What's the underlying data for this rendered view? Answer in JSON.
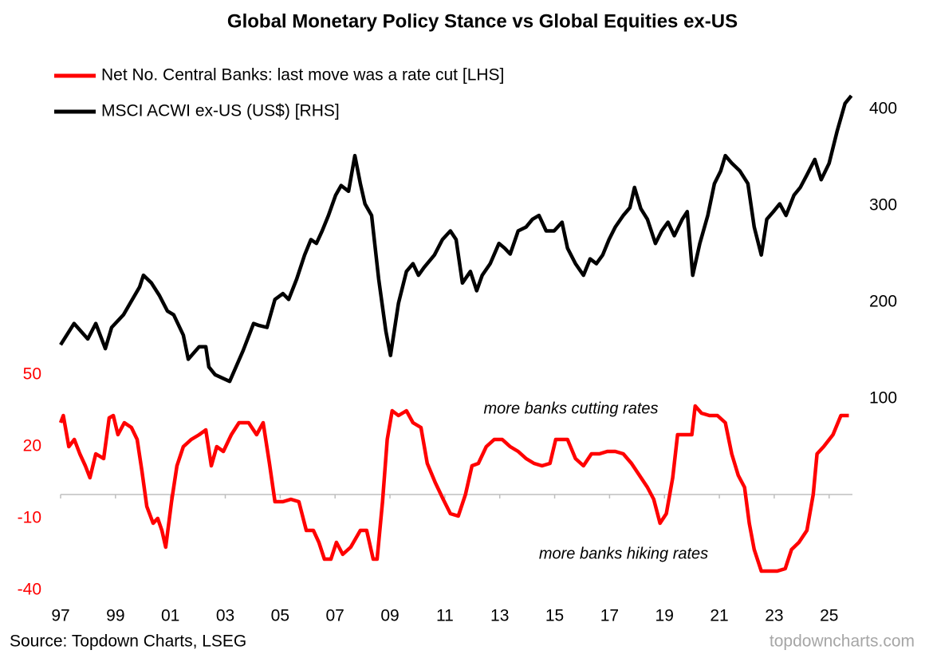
{
  "chart_data": {
    "type": "line",
    "title": "Global Monetary Policy Stance vs Global Equities ex-US",
    "source": "Source: Topdown Charts, LSEG",
    "watermark": "topdowncharts.com",
    "annotations": [
      "more banks cutting rates",
      "more banks hiking rates"
    ],
    "xlim": [
      1997,
      2025.85
    ],
    "xticks": [
      {
        "value": 1997,
        "label": "97"
      },
      {
        "value": 1999,
        "label": "99"
      },
      {
        "value": 2001,
        "label": "01"
      },
      {
        "value": 2003,
        "label": "03"
      },
      {
        "value": 2005,
        "label": "05"
      },
      {
        "value": 2007,
        "label": "07"
      },
      {
        "value": 2009,
        "label": "09"
      },
      {
        "value": 2011,
        "label": "11"
      },
      {
        "value": 2013,
        "label": "13"
      },
      {
        "value": 2015,
        "label": "15"
      },
      {
        "value": 2017,
        "label": "17"
      },
      {
        "value": 2019,
        "label": "19"
      },
      {
        "value": 2021,
        "label": "21"
      },
      {
        "value": 2023,
        "label": "23"
      },
      {
        "value": 2025,
        "label": "25"
      }
    ],
    "ylim": [
      -40,
      170
    ],
    "yticks": [
      -40,
      -10,
      20,
      50
    ],
    "y2lim": [
      -98.3,
      422.3
    ],
    "y2ticks": [
      100,
      200,
      300,
      400
    ],
    "series": [
      {
        "name": "Net No. Central Banks: last move was a rate cut [LHS]",
        "color": "#ff0000",
        "axis": "y",
        "x": [
          1997.0,
          1997.1,
          1997.3,
          1997.5,
          1997.7,
          1997.9,
          1998.07,
          1998.28,
          1998.57,
          1998.77,
          1998.92,
          1999.09,
          1999.32,
          1999.58,
          1999.79,
          1999.96,
          2000.14,
          2000.37,
          2000.54,
          2000.69,
          2000.83,
          2001.04,
          2001.24,
          2001.47,
          2001.76,
          2002.05,
          2002.29,
          2002.49,
          2002.69,
          2002.93,
          2003.22,
          2003.5,
          2003.85,
          2004.14,
          2004.38,
          2004.61,
          2004.81,
          2005.1,
          2005.39,
          2005.68,
          2005.95,
          2006.21,
          2006.41,
          2006.61,
          2006.85,
          2007.05,
          2007.28,
          2007.57,
          2007.92,
          2008.15,
          2008.39,
          2008.53,
          2008.73,
          2008.9,
          2009.08,
          2009.31,
          2009.6,
          2009.84,
          2010.13,
          2010.36,
          2010.65,
          2010.94,
          2011.2,
          2011.49,
          2011.75,
          2011.99,
          2012.22,
          2012.51,
          2012.8,
          2013.09,
          2013.38,
          2013.67,
          2013.96,
          2014.25,
          2014.54,
          2014.83,
          2015.04,
          2015.47,
          2015.76,
          2016.05,
          2016.34,
          2016.63,
          2016.92,
          2017.21,
          2017.5,
          2017.8,
          2018.09,
          2018.38,
          2018.61,
          2018.84,
          2019.07,
          2019.3,
          2019.48,
          2019.77,
          2020.0,
          2020.12,
          2020.35,
          2020.64,
          2020.93,
          2021.22,
          2021.45,
          2021.69,
          2021.92,
          2022.09,
          2022.27,
          2022.53,
          2022.82,
          2023.11,
          2023.4,
          2023.63,
          2023.9,
          2024.19,
          2024.42,
          2024.56,
          2024.8,
          2025.14,
          2025.43,
          2025.72
        ],
        "values": [
          30,
          33,
          20,
          23,
          17,
          12,
          7,
          17,
          15,
          32,
          33,
          25,
          30,
          28,
          23,
          10,
          -5,
          -12,
          -10,
          -15,
          -22,
          -3,
          12,
          20,
          23,
          25,
          27,
          12,
          20,
          18,
          25,
          30,
          30,
          25,
          30,
          13,
          -3,
          -3,
          -2,
          -3,
          -15,
          -15,
          -20,
          -27,
          -27,
          -20,
          -25,
          -22,
          -15,
          -15,
          -27,
          -27,
          -3,
          23,
          35,
          33,
          35,
          30,
          28,
          13,
          5,
          -2,
          -8,
          -9,
          0,
          12,
          13,
          20,
          23,
          23,
          20,
          18,
          15,
          13,
          12,
          13,
          23,
          23,
          15,
          12,
          17,
          17,
          18,
          18,
          17,
          13,
          8,
          3,
          -2,
          -12,
          -8,
          7,
          25,
          25,
          25,
          37,
          34,
          33,
          33,
          30,
          17,
          8,
          3,
          -12,
          -23,
          -32,
          -32,
          -32,
          -31,
          -23,
          -20,
          -15,
          0,
          17,
          20,
          25,
          33,
          33
        ]
      },
      {
        "name": "MSCI ACWI ex-US (US$) [RHS]",
        "color": "#000000",
        "axis": "y2",
        "x": [
          1997.0,
          1997.49,
          1997.99,
          1998.28,
          1998.63,
          1998.86,
          1999.29,
          1999.88,
          2000.02,
          2000.31,
          2000.6,
          2000.89,
          2001.12,
          2001.47,
          2001.65,
          2002.05,
          2002.29,
          2002.4,
          2002.63,
          2002.93,
          2003.16,
          2003.39,
          2003.65,
          2004.03,
          2004.23,
          2004.52,
          2004.81,
          2005.1,
          2005.31,
          2005.6,
          2005.89,
          2006.12,
          2006.32,
          2006.53,
          2006.76,
          2007.02,
          2007.22,
          2007.49,
          2007.72,
          2007.92,
          2008.09,
          2008.33,
          2008.59,
          2008.85,
          2009.02,
          2009.31,
          2009.6,
          2009.84,
          2010.04,
          2010.24,
          2010.62,
          2010.91,
          2011.2,
          2011.41,
          2011.64,
          2011.93,
          2012.16,
          2012.36,
          2012.65,
          2012.97,
          2013.18,
          2013.38,
          2013.67,
          2013.96,
          2014.19,
          2014.43,
          2014.69,
          2014.98,
          2015.27,
          2015.47,
          2015.76,
          2016.05,
          2016.29,
          2016.52,
          2016.75,
          2016.98,
          2017.21,
          2017.5,
          2017.74,
          2017.91,
          2018.14,
          2018.38,
          2018.67,
          2018.9,
          2019.13,
          2019.36,
          2019.65,
          2019.83,
          2020.03,
          2020.29,
          2020.58,
          2020.82,
          2021.05,
          2021.22,
          2021.46,
          2021.75,
          2022.04,
          2022.27,
          2022.53,
          2022.73,
          2022.97,
          2023.2,
          2023.43,
          2023.72,
          2023.95,
          2024.19,
          2024.48,
          2024.71,
          2025.0,
          2025.29,
          2025.58,
          2025.81
        ],
        "values": [
          156,
          178,
          162,
          178,
          152,
          174,
          187,
          216,
          228,
          220,
          207,
          191,
          187,
          166,
          141,
          154,
          154,
          133,
          125,
          121,
          118,
          133,
          150,
          178,
          176,
          174,
          203,
          209,
          203,
          224,
          249,
          265,
          261,
          274,
          290,
          311,
          321,
          315,
          352,
          323,
          302,
          290,
          224,
          170,
          145,
          199,
          232,
          240,
          228,
          236,
          249,
          265,
          274,
          265,
          220,
          232,
          212,
          228,
          240,
          261,
          256,
          250,
          274,
          278,
          286,
          290,
          274,
          274,
          283,
          256,
          240,
          228,
          245,
          240,
          249,
          265,
          278,
          290,
          298,
          319,
          297,
          286,
          261,
          274,
          283,
          269,
          286,
          294,
          228,
          261,
          290,
          323,
          336,
          352,
          344,
          336,
          323,
          278,
          249,
          286,
          294,
          302,
          290,
          311,
          319,
          332,
          348,
          327,
          344,
          377,
          406,
          414
        ]
      }
    ]
  }
}
